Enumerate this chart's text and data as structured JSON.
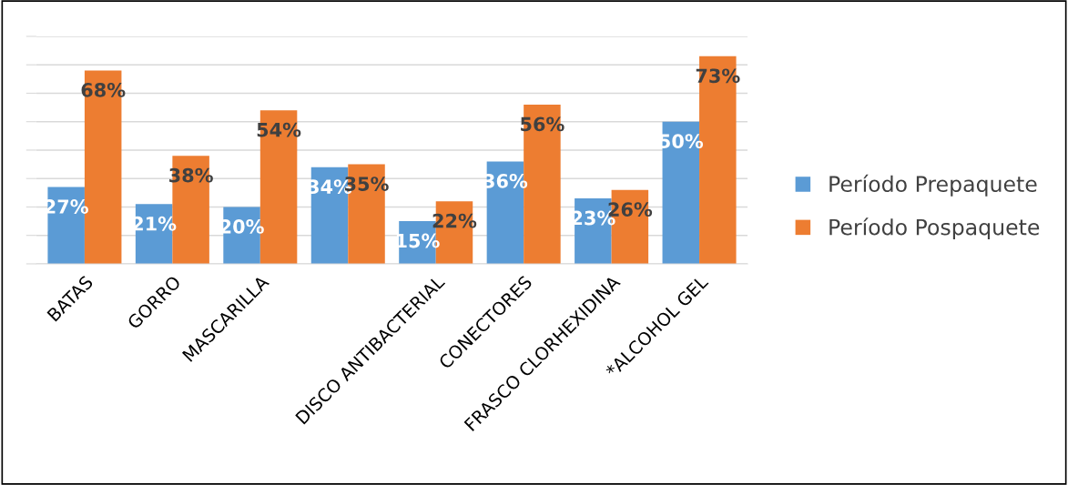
{
  "chart_data": {
    "type": "bar",
    "categories": [
      "BATAS",
      "GORRO",
      "MASCARILLA",
      null,
      "DISCO ANTIBACTERIAL",
      "CONECTORES",
      "FRASCO CLORHEXIDINA",
      "*ALCOHOL GEL"
    ],
    "series": [
      {
        "name": "Período Prepaquete",
        "color": "#5b9bd5",
        "values": [
          27,
          21,
          20,
          34,
          15,
          36,
          23,
          50
        ],
        "value_labels": [
          "27%",
          "21%",
          "20%",
          "34%",
          "15%",
          "36%",
          "23%",
          "50%"
        ]
      },
      {
        "name": "Período Pospaquete",
        "color": "#ed7d31",
        "values": [
          68,
          38,
          54,
          35,
          22,
          56,
          26,
          73
        ],
        "value_labels": [
          "68%",
          "38%",
          "54%",
          "35%",
          "22%",
          "56%",
          "26%",
          "73%"
        ]
      }
    ],
    "ylim": [
      0,
      80
    ],
    "yticks": [
      {
        "value": 0,
        "label": null
      },
      {
        "value": 10,
        "label": null
      },
      {
        "value": 20,
        "label": null
      },
      {
        "value": 30,
        "label": null
      },
      {
        "value": 40,
        "label": null
      },
      {
        "value": 50,
        "label": null
      },
      {
        "value": 60,
        "label": null
      },
      {
        "value": 70,
        "label": null
      },
      {
        "value": 80,
        "label": null
      }
    ],
    "tick_labels": "x",
    "grid": "y",
    "legend": "right"
  }
}
